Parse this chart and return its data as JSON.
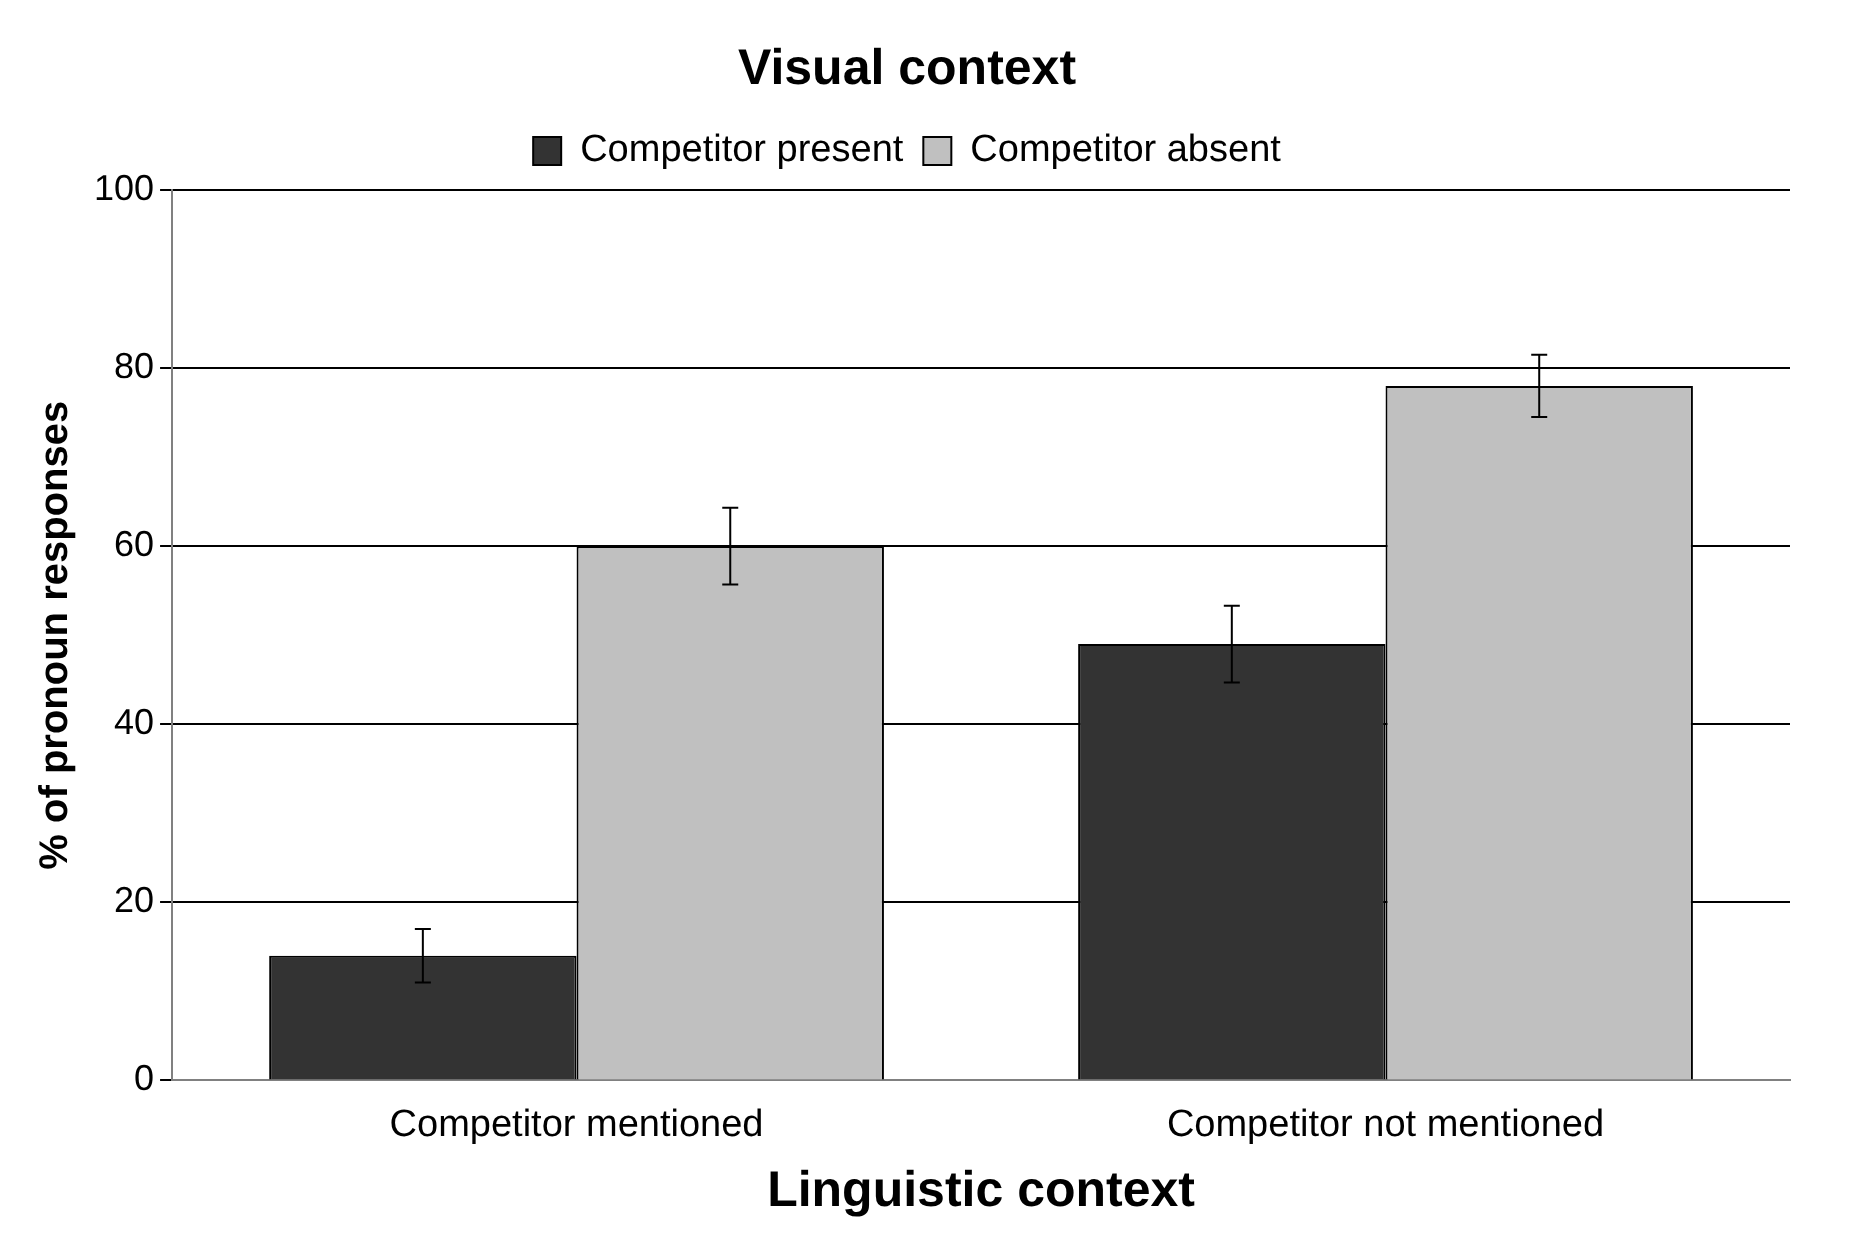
{
  "chart_data": {
    "type": "bar",
    "title": "Visual context",
    "xlabel": "Linguistic context",
    "ylabel": "% of pronoun responses",
    "categories": [
      "Competitor mentioned",
      "Competitor not mentioned"
    ],
    "series": [
      {
        "name": "Competitor present",
        "color": "#333333",
        "values": [
          14,
          49
        ],
        "errors": [
          3,
          4.3
        ]
      },
      {
        "name": "Competitor absent",
        "color": "#c0c0c0",
        "values": [
          60,
          78
        ],
        "errors": [
          4.3,
          3.5
        ]
      }
    ],
    "ylim": [
      0,
      100
    ],
    "yticks": [
      0,
      20,
      40,
      60,
      80,
      100
    ],
    "grid": "y",
    "legend": "top"
  }
}
